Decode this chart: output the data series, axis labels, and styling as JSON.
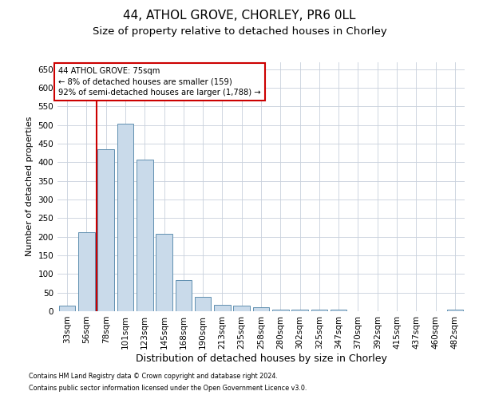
{
  "title1": "44, ATHOL GROVE, CHORLEY, PR6 0LL",
  "title2": "Size of property relative to detached houses in Chorley",
  "xlabel": "Distribution of detached houses by size in Chorley",
  "ylabel": "Number of detached properties",
  "footnote1": "Contains HM Land Registry data © Crown copyright and database right 2024.",
  "footnote2": "Contains public sector information licensed under the Open Government Licence v3.0.",
  "categories": [
    "33sqm",
    "56sqm",
    "78sqm",
    "101sqm",
    "123sqm",
    "145sqm",
    "168sqm",
    "190sqm",
    "213sqm",
    "235sqm",
    "258sqm",
    "280sqm",
    "302sqm",
    "325sqm",
    "347sqm",
    "370sqm",
    "392sqm",
    "415sqm",
    "437sqm",
    "460sqm",
    "482sqm"
  ],
  "values": [
    15,
    212,
    435,
    503,
    407,
    207,
    84,
    38,
    18,
    16,
    10,
    5,
    5,
    5,
    5,
    1,
    1,
    1,
    1,
    1,
    4
  ],
  "bar_color": "#c9daea",
  "bar_edge_color": "#6090b0",
  "vline_x": 1.5,
  "vline_color": "#cc0000",
  "annotation_text": "44 ATHOL GROVE: 75sqm\n← 8% of detached houses are smaller (159)\n92% of semi-detached houses are larger (1,788) →",
  "annotation_box_color": "#ffffff",
  "annotation_box_edge_color": "#cc0000",
  "ylim": [
    0,
    670
  ],
  "yticks": [
    0,
    50,
    100,
    150,
    200,
    250,
    300,
    350,
    400,
    450,
    500,
    550,
    600,
    650
  ],
  "background_color": "#ffffff",
  "grid_color": "#c8d0dc",
  "title1_fontsize": 11,
  "title2_fontsize": 9.5,
  "axis_fontsize": 7.5,
  "ylabel_fontsize": 8,
  "xlabel_fontsize": 9,
  "footnote_fontsize": 5.8
}
